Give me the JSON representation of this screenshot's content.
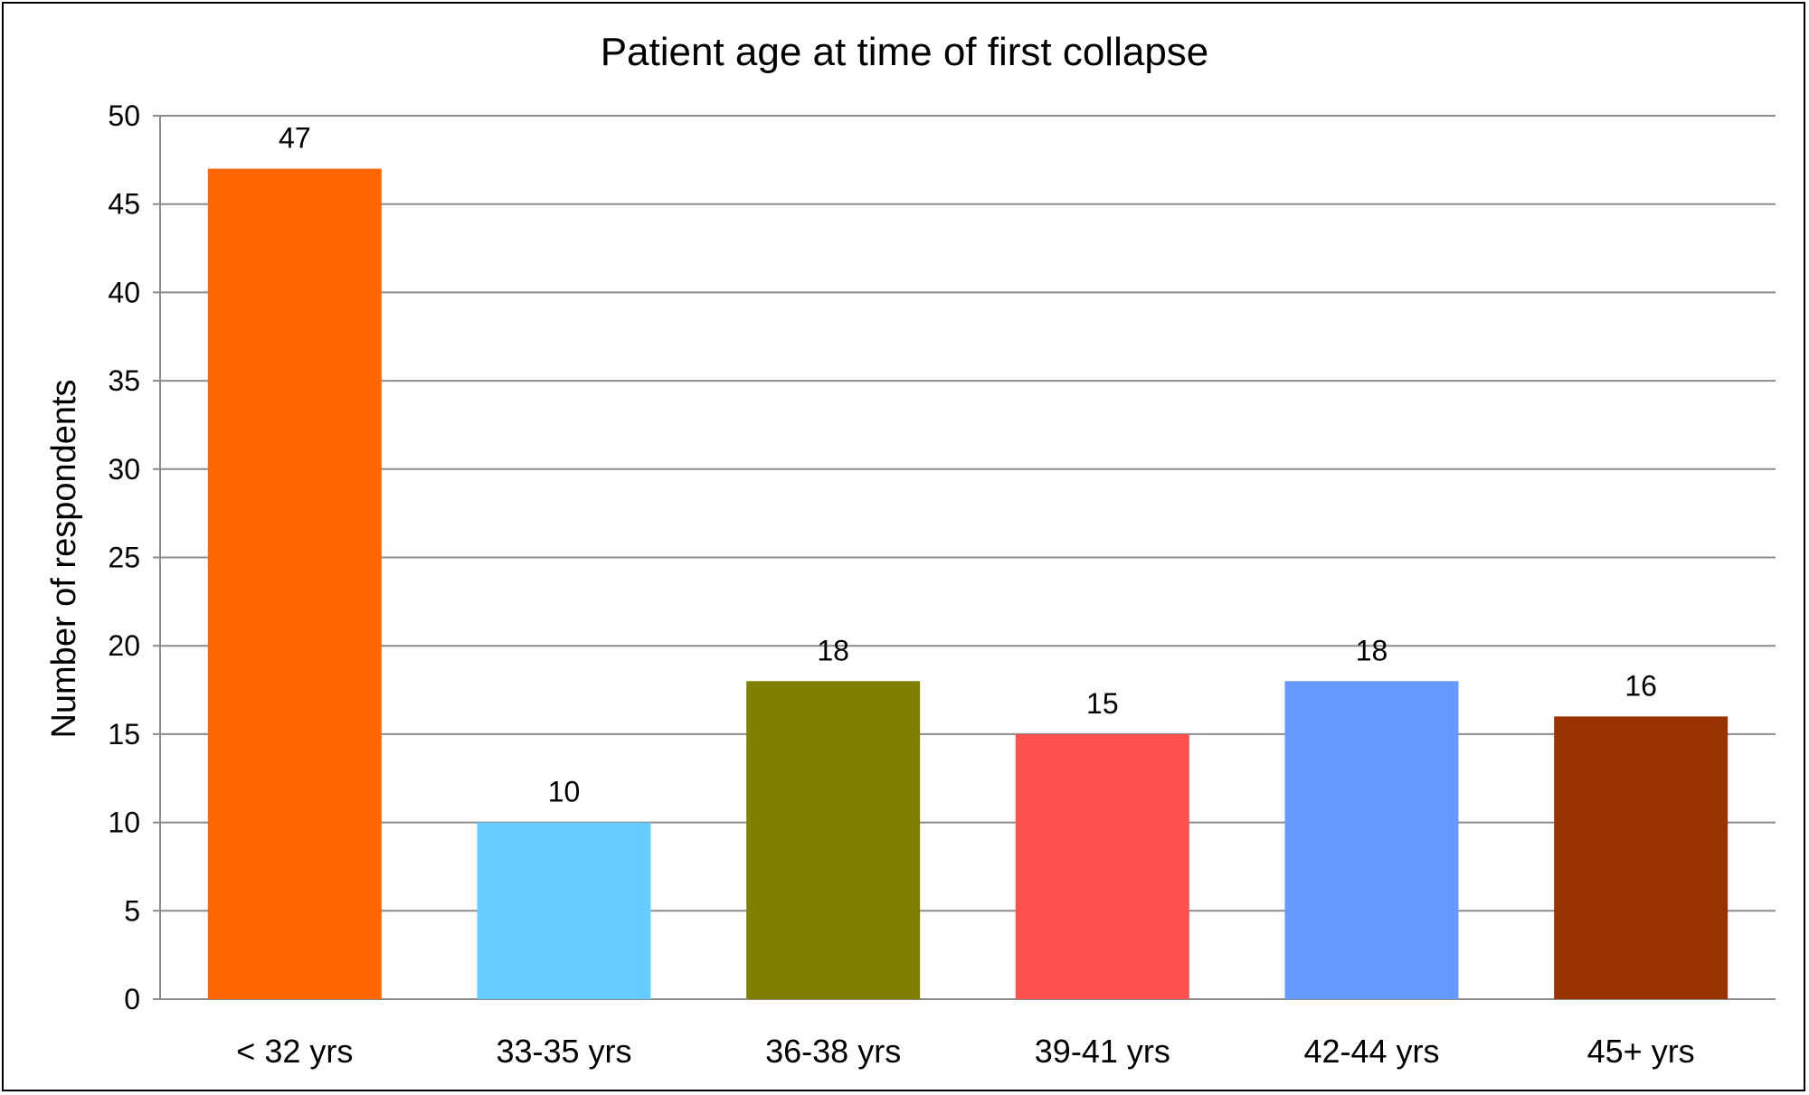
{
  "chart_data": {
    "type": "bar",
    "title": "Patient age at time of first collapse",
    "xlabel": "",
    "ylabel": "Number of respondents",
    "categories": [
      "< 32 yrs",
      "33-35 yrs",
      "36-38 yrs",
      "39-41 yrs",
      "42-44 yrs",
      "45+ yrs"
    ],
    "values": [
      47,
      10,
      18,
      15,
      18,
      16
    ],
    "colors": [
      "#FF6600",
      "#66CCFF",
      "#808000",
      "#FF5050",
      "#6699FF",
      "#993300"
    ],
    "ylim": [
      0,
      50
    ],
    "yticks": [
      "0",
      "5",
      "10",
      "15",
      "20",
      "25",
      "30",
      "35",
      "40",
      "45",
      "50"
    ],
    "data_labels": [
      "47",
      "10",
      "18",
      "15",
      "18",
      "16"
    ],
    "grid": true,
    "legend": "none"
  }
}
